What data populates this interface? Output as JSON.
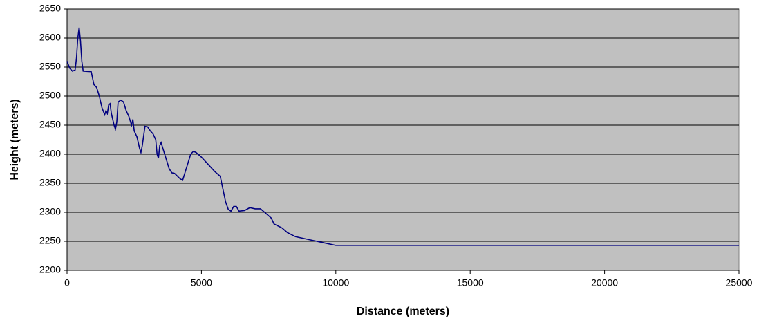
{
  "chart_data": {
    "type": "line",
    "xlabel": "Distance (meters)",
    "ylabel": "Height (meters)",
    "x": [
      0,
      100,
      200,
      300,
      350,
      400,
      450,
      500,
      550,
      600,
      900,
      1000,
      1100,
      1200,
      1300,
      1400,
      1450,
      1500,
      1550,
      1600,
      1650,
      1750,
      1800,
      1850,
      1900,
      2000,
      2100,
      2200,
      2300,
      2400,
      2450,
      2500,
      2600,
      2700,
      2750,
      2800,
      2900,
      3000,
      3100,
      3200,
      3300,
      3350,
      3400,
      3450,
      3500,
      3600,
      3700,
      3800,
      3900,
      4000,
      4200,
      4300,
      4400,
      4500,
      4600,
      4700,
      4800,
      5000,
      5200,
      5500,
      5700,
      5800,
      5900,
      6000,
      6100,
      6200,
      6300,
      6400,
      6600,
      6800,
      7000,
      7200,
      7400,
      7600,
      7700,
      8000,
      8200,
      8500,
      9000,
      9500,
      10000,
      25000
    ],
    "series": [
      {
        "name": "Height",
        "color": "#000080",
        "values": [
          2560,
          2548,
          2543,
          2545,
          2565,
          2600,
          2618,
          2595,
          2560,
          2543,
          2542,
          2520,
          2515,
          2500,
          2480,
          2468,
          2475,
          2470,
          2485,
          2487,
          2470,
          2450,
          2443,
          2455,
          2490,
          2493,
          2490,
          2475,
          2465,
          2450,
          2460,
          2440,
          2430,
          2410,
          2403,
          2415,
          2448,
          2447,
          2440,
          2435,
          2425,
          2400,
          2393,
          2415,
          2420,
          2405,
          2390,
          2375,
          2368,
          2367,
          2358,
          2355,
          2370,
          2385,
          2400,
          2405,
          2403,
          2395,
          2385,
          2370,
          2362,
          2340,
          2318,
          2305,
          2302,
          2310,
          2310,
          2302,
          2303,
          2308,
          2306,
          2306,
          2298,
          2290,
          2280,
          2273,
          2265,
          2258,
          2253,
          2248,
          2243,
          2243
        ]
      }
    ],
    "xlim": [
      0,
      25000
    ],
    "xticks": [
      0,
      5000,
      10000,
      15000,
      20000,
      25000
    ],
    "ylim": [
      2200,
      2650
    ],
    "yticks": [
      2200,
      2250,
      2300,
      2350,
      2400,
      2450,
      2500,
      2550,
      2600,
      2650
    ],
    "grid": true,
    "plot_background": "#c0c0c0"
  }
}
